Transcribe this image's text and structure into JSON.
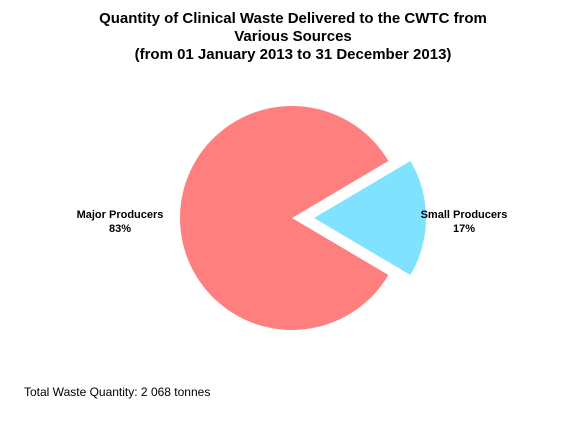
{
  "chart_data": {
    "type": "pie",
    "title": [
      "Quantity of Clinical Waste Delivered to the CWTC from",
      "Various Sources",
      "(from 01 January 2013 to 31 December 2013)"
    ],
    "slices": [
      {
        "name": "Major Producers",
        "value": 83,
        "label": "83%",
        "color": "#ff7f7f",
        "exploded": false
      },
      {
        "name": "Small Producers",
        "value": 17,
        "label": "17%",
        "color": "#7fe3ff",
        "exploded": true
      }
    ],
    "legend": "none"
  },
  "footer": {
    "total_text": "Total Waste Quantity: 2 068 tonnes"
  }
}
